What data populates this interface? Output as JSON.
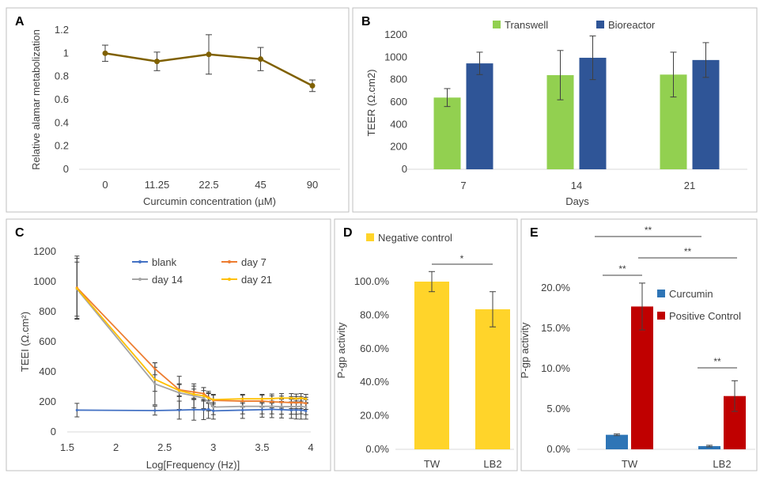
{
  "chart_data": [
    {
      "panel_label": "A",
      "type": "line",
      "categories": [
        "0",
        "11.25",
        "22.5",
        "45",
        "90"
      ],
      "series": [
        {
          "values": [
            1.0,
            0.93,
            0.99,
            0.95,
            0.72
          ],
          "errors": [
            0.07,
            0.08,
            0.17,
            0.1,
            0.05
          ],
          "color": "#7f6000"
        }
      ],
      "xlabel": "Curcumin concentration (µM)",
      "ylabel": "Relative alamar metabolization",
      "ylim": [
        0,
        1.2
      ],
      "yticks": [
        "0",
        "0.2",
        "0.4",
        "0.6",
        "0.8",
        "1",
        "1.2"
      ],
      "grid": false
    },
    {
      "panel_label": "B",
      "type": "bar",
      "categories": [
        "7",
        "14",
        "21"
      ],
      "series": [
        {
          "name": "Transwell",
          "values": [
            640,
            840,
            845
          ],
          "errors": [
            80,
            220,
            200
          ],
          "color": "#92d050"
        },
        {
          "name": "Bioreactor",
          "values": [
            945,
            995,
            975
          ],
          "errors": [
            100,
            195,
            155
          ],
          "color": "#2f5597"
        }
      ],
      "xlabel": "Days",
      "ylabel": "TEER (Ω.cm2)",
      "ylim": [
        0,
        1200
      ],
      "yticks": [
        "0",
        "200",
        "400",
        "600",
        "800",
        "1000",
        "1200"
      ],
      "legend": "top",
      "grid": false
    },
    {
      "panel_label": "C",
      "type": "line",
      "xlabel": "Log[Frequency (Hz)]",
      "ylabel": "TEEI (Ω.cm²)",
      "xlim": [
        1.5,
        4
      ],
      "ylim": [
        0,
        1200
      ],
      "xticks": [
        "1.5",
        "2",
        "2.5",
        "3",
        "3.5",
        "4"
      ],
      "yticks": [
        "0",
        "200",
        "400",
        "600",
        "800",
        "1000",
        "1200"
      ],
      "legend": "top-right",
      "grid": false,
      "series": [
        {
          "name": "blank",
          "color": "#4472c4",
          "x": [
            1.6,
            2.4,
            2.65,
            2.8,
            2.9,
            2.95,
            3.0,
            3.3,
            3.5,
            3.6,
            3.7,
            3.8,
            3.85,
            3.9,
            3.95
          ],
          "y": [
            145,
            142,
            145,
            148,
            147,
            150,
            140,
            145,
            148,
            150,
            148,
            145,
            146,
            145,
            140
          ],
          "err": [
            45,
            30,
            60,
            70,
            65,
            60,
            55,
            55,
            50,
            55,
            55,
            55,
            60,
            60,
            55
          ]
        },
        {
          "name": "day 7",
          "color": "#ed7d31",
          "x": [
            1.6,
            2.4,
            2.65,
            2.8,
            2.9,
            2.95,
            3.0,
            3.3,
            3.5,
            3.6,
            3.7,
            3.8,
            3.85,
            3.9,
            3.95
          ],
          "y": [
            960,
            420,
            280,
            265,
            255,
            230,
            210,
            205,
            205,
            200,
            198,
            195,
            195,
            195,
            190
          ],
          "err": [
            210,
            40,
            40,
            40,
            40,
            40,
            40,
            40,
            40,
            40,
            40,
            40,
            40,
            40,
            40
          ]
        },
        {
          "name": "day 14",
          "color": "#a5a5a5",
          "x": [
            1.6,
            2.4,
            2.65,
            2.8,
            2.9,
            2.95,
            3.0,
            3.3,
            3.5,
            3.6,
            3.7,
            3.8,
            3.85,
            3.9,
            3.95
          ],
          "y": [
            950,
            320,
            260,
            240,
            225,
            200,
            165,
            170,
            170,
            170,
            168,
            168,
            168,
            170,
            165
          ],
          "err": [
            180,
            140,
            110,
            80,
            70,
            60,
            50,
            50,
            50,
            50,
            50,
            50,
            50,
            50,
            50
          ]
        },
        {
          "name": "day 21",
          "color": "#ffc000",
          "x": [
            1.6,
            2.4,
            2.65,
            2.8,
            2.9,
            2.95,
            3.0,
            3.3,
            3.5,
            3.6,
            3.7,
            3.8,
            3.85,
            3.9,
            3.95
          ],
          "y": [
            955,
            350,
            275,
            250,
            240,
            225,
            215,
            220,
            220,
            222,
            225,
            225,
            222,
            225,
            220
          ],
          "err": [
            200,
            80,
            40,
            35,
            35,
            30,
            30,
            30,
            30,
            30,
            30,
            30,
            30,
            30,
            30
          ]
        }
      ]
    },
    {
      "panel_label": "D",
      "type": "bar",
      "categories": [
        "TW",
        "LB2"
      ],
      "series": [
        {
          "name": "Negative control",
          "values": [
            1.0,
            0.835
          ],
          "errors": [
            0.06,
            0.105
          ],
          "color": "#ffd42a"
        }
      ],
      "ylabel": "P-gp activity",
      "ylim": [
        0,
        1.0
      ],
      "yticks": [
        "0.0%",
        "20.0%",
        "40.0%",
        "60.0%",
        "80.0%",
        "100.0%"
      ],
      "legend": "top-left",
      "annotations": [
        {
          "text": "*",
          "between": [
            "TW",
            "LB2"
          ]
        }
      ],
      "grid": false
    },
    {
      "panel_label": "E",
      "type": "bar",
      "categories": [
        "TW",
        "LB2"
      ],
      "series": [
        {
          "name": "Curcumin",
          "values": [
            0.018,
            0.004
          ],
          "errors": [
            0.001,
            0.001
          ],
          "color": "#2e75b6"
        },
        {
          "name": "Positive Control",
          "values": [
            0.177,
            0.066
          ],
          "errors": [
            0.029,
            0.019
          ],
          "color": "#c00000"
        }
      ],
      "ylabel": "P-gp activity",
      "ylim": [
        0,
        0.2
      ],
      "yticks": [
        "0.0%",
        "5.0%",
        "10.0%",
        "15.0%",
        "20.0%"
      ],
      "legend": "right",
      "annotations": [
        {
          "text": "**",
          "between": [
            "TW Curcumin",
            "TW Positive Control"
          ]
        },
        {
          "text": "**",
          "between": [
            "LB2 Curcumin",
            "LB2 Positive Control"
          ]
        },
        {
          "text": "**",
          "between": [
            "TW Curcumin",
            "LB2 Curcumin"
          ]
        },
        {
          "text": "**",
          "between": [
            "TW Positive Control",
            "LB2 Positive Control"
          ]
        }
      ],
      "grid": false
    }
  ]
}
